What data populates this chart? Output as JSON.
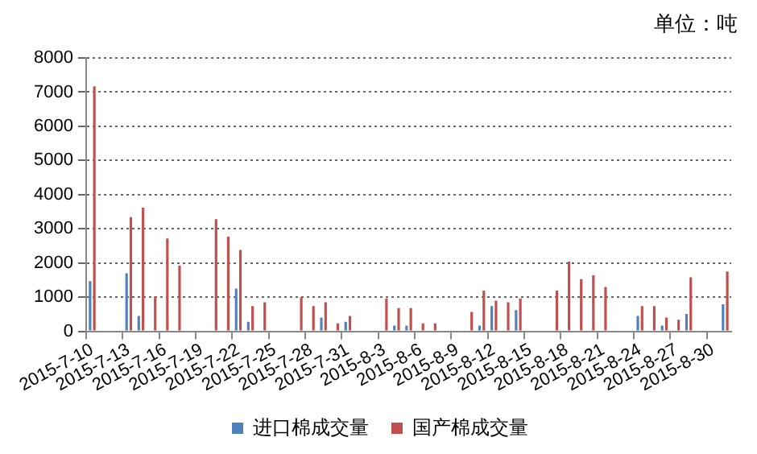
{
  "chart_data": {
    "type": "bar",
    "categories": [
      "2015-7-10",
      null,
      null,
      "2015-7-13",
      null,
      null,
      "2015-7-16",
      null,
      null,
      "2015-7-19",
      null,
      null,
      "2015-7-22",
      null,
      null,
      "2015-7-25",
      null,
      null,
      "2015-7-28",
      null,
      null,
      "2015-7-31",
      null,
      null,
      "2015-8-3",
      null,
      null,
      "2015-8-6",
      null,
      null,
      "2015-8-9",
      null,
      null,
      "2015-8-12",
      null,
      null,
      "2015-8-15",
      null,
      null,
      "2015-8-18",
      null,
      null,
      "2015-8-21",
      null,
      null,
      "2015-8-24",
      null,
      null,
      "2015-8-27",
      null,
      null,
      "2015-8-30",
      null
    ],
    "series": [
      {
        "name": "进口棉成交量",
        "color": "#4f81bd",
        "values": [
          1470,
          null,
          null,
          1700,
          450,
          null,
          null,
          null,
          null,
          null,
          null,
          null,
          1250,
          280,
          null,
          null,
          null,
          null,
          null,
          400,
          null,
          280,
          null,
          null,
          null,
          170,
          170,
          null,
          null,
          null,
          null,
          null,
          170,
          740,
          null,
          620,
          null,
          null,
          null,
          null,
          null,
          null,
          null,
          null,
          null,
          450,
          null,
          170,
          null,
          510,
          null,
          null,
          790
        ]
      },
      {
        "name": "国产棉成交量",
        "color": "#c0504d",
        "values": [
          7170,
          null,
          null,
          3340,
          3620,
          1020,
          2720,
          1920,
          null,
          null,
          3280,
          2770,
          2380,
          740,
          850,
          null,
          null,
          1000,
          740,
          850,
          230,
          450,
          null,
          null,
          960,
          680,
          680,
          230,
          230,
          null,
          null,
          570,
          1190,
          900,
          850,
          960,
          null,
          null,
          1190,
          2040,
          1530,
          1640,
          1300,
          null,
          null,
          740,
          740,
          400,
          340,
          1580,
          null,
          null,
          1750
        ]
      }
    ],
    "ylim": [
      0,
      8000
    ],
    "yticks": [
      0,
      1000,
      2000,
      3000,
      4000,
      5000,
      6000,
      7000,
      8000
    ],
    "grid": "y",
    "legend": "bottom",
    "annotations": [
      "单位：吨"
    ]
  }
}
